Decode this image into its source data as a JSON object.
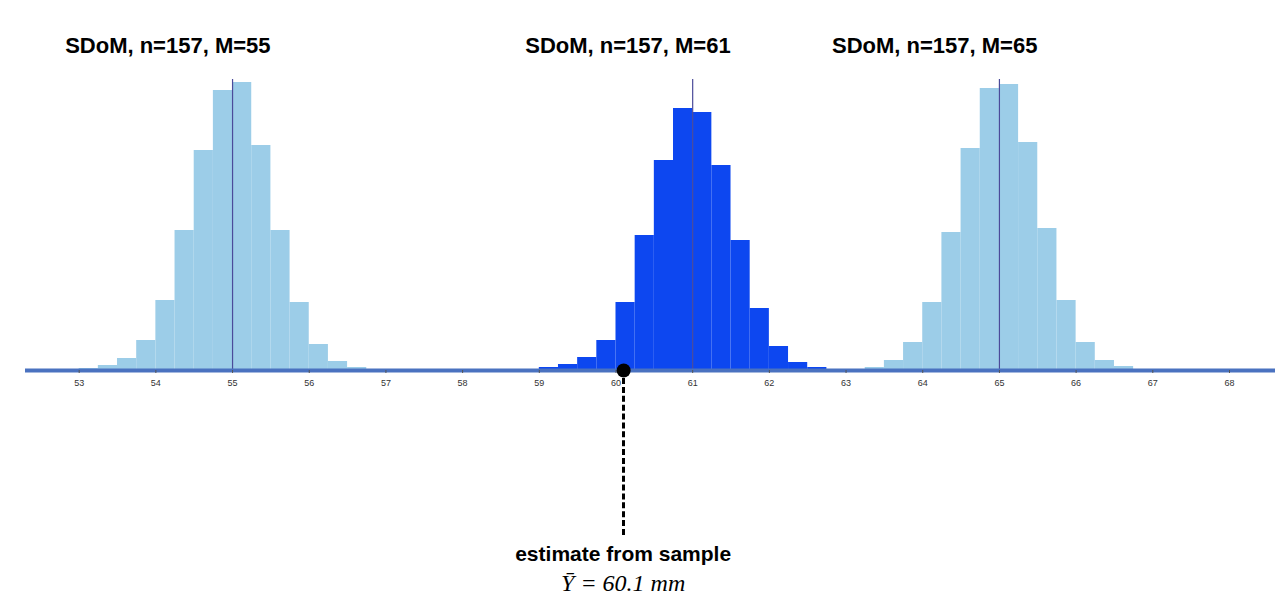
{
  "chart_data": {
    "type": "histogram",
    "xlim": [
      52.3,
      68.6
    ],
    "xticks": [
      53,
      54,
      55,
      56,
      57,
      58,
      59,
      60,
      61,
      62,
      63,
      64,
      65,
      66,
      67,
      68
    ],
    "ylim": [
      0,
      300
    ],
    "tick_labels": "x",
    "series": [
      {
        "name": "SDoM, n=157, M=55",
        "color": "#9ccde8",
        "mean": 55,
        "bins": [
          52.75,
          53,
          53.25,
          53.5,
          53.75,
          54,
          54.25,
          54.5,
          54.75,
          55,
          55.25,
          55.5,
          55.75,
          56,
          56.25,
          56.5,
          56.75,
          57,
          57.25
        ],
        "counts": [
          1,
          2,
          5,
          12,
          30,
          70,
          140,
          220,
          280,
          288,
          225,
          140,
          68,
          26,
          9,
          3,
          1,
          0
        ]
      },
      {
        "name": "SDoM, n=157, M=65",
        "color": "#9ccde8",
        "mean": 65,
        "bins": [
          62.75,
          63,
          63.25,
          63.5,
          63.75,
          64,
          64.25,
          64.5,
          64.75,
          65,
          65.25,
          65.5,
          65.75,
          66,
          66.25,
          66.5,
          66.75,
          67,
          67.25
        ],
        "counts": [
          0,
          1,
          3,
          10,
          28,
          68,
          138,
          222,
          282,
          286,
          228,
          142,
          70,
          28,
          10,
          4,
          1,
          1
        ]
      },
      {
        "name": "SDoM, n=157, M=61",
        "color": "#0d47f0",
        "mean": 61,
        "bins": [
          58.75,
          59,
          59.25,
          59.5,
          59.75,
          60,
          60.25,
          60.5,
          60.75,
          61,
          61.25,
          61.5,
          61.75,
          62,
          62.25,
          62.5,
          62.75,
          63,
          63.25
        ],
        "counts": [
          1,
          3,
          6,
          13,
          30,
          68,
          135,
          210,
          262,
          258,
          205,
          130,
          62,
          24,
          8,
          3,
          1,
          0
        ]
      }
    ],
    "annotation": {
      "value": 60.1,
      "label": "estimate from sample",
      "text": "Ȳ = 60.1 mm"
    }
  }
}
